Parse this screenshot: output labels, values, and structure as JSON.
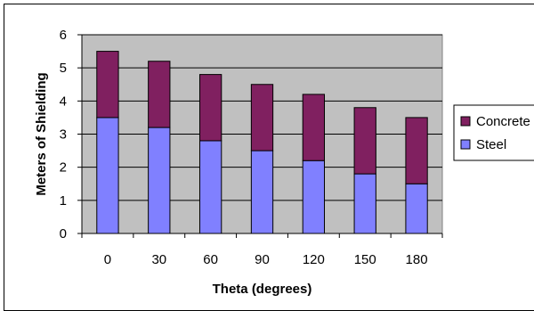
{
  "chart_data": {
    "type": "bar",
    "stacked": true,
    "categories": [
      "0",
      "30",
      "60",
      "90",
      "120",
      "150",
      "180"
    ],
    "series": [
      {
        "name": "Steel",
        "color": "#8080ff",
        "values": [
          3.5,
          3.2,
          2.8,
          2.5,
          2.2,
          1.8,
          1.5
        ]
      },
      {
        "name": "Concrete",
        "color": "#802060",
        "values": [
          2.0,
          2.0,
          2.0,
          2.0,
          2.0,
          2.0,
          2.0
        ]
      }
    ],
    "xlabel": "Theta (degrees)",
    "ylabel": "Meters of Shielding",
    "ylim": [
      0,
      6
    ],
    "yticks": [
      "0",
      "1",
      "2",
      "3",
      "4",
      "5",
      "6"
    ],
    "grid": true,
    "plot_background": "#c0c0c0",
    "legend": {
      "placement": "right",
      "entries": [
        "Concrete",
        "Steel"
      ]
    }
  }
}
